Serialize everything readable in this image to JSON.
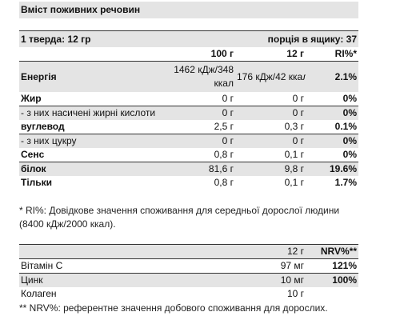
{
  "title": "Вміст поживних речовин",
  "serving": {
    "left": "1 тверда: 12 гр",
    "right": "порція в ящику: 37"
  },
  "table1": {
    "headers": [
      "",
      "100 г",
      "12 г",
      "RI%*"
    ],
    "rows": [
      {
        "name": "Енергія",
        "v100": "1462 кДж/348 ккал",
        "v12": "176 кДж/42 ккал",
        "ri": "2.1%"
      },
      {
        "name": "Жир",
        "v100": "0 г",
        "v12": "0 г",
        "ri": "0%"
      },
      {
        "name": "- з них насичені жирні кислоти",
        "v100": "0 г",
        "v12": "0 г",
        "ri": "0%"
      },
      {
        "name": "вуглевод",
        "v100": "2,5 г",
        "v12": "0,3 г",
        "ri": "0.1%"
      },
      {
        "name": "- з них цукру",
        "v100": "0 г",
        "v12": "0 г",
        "ri": "0%"
      },
      {
        "name": "Сенс",
        "v100": "0,8 г",
        "v12": "0,1 г",
        "ri": "0%"
      },
      {
        "name": "білок",
        "v100": "81,6 г",
        "v12": "9,8 г",
        "ri": "19.6%"
      },
      {
        "name": "Тільки",
        "v100": "0,8 г",
        "v12": "0,1 г",
        "ri": "1.7%"
      }
    ]
  },
  "note1": "* RI%: Довідкове значення споживання для середньої дорослої людини (8400 кДж/2000 ккал).",
  "table2": {
    "headers": [
      "",
      "12 г",
      "NRV%**"
    ],
    "rows": [
      {
        "name": "Вітамін C",
        "v12": "97 мг",
        "nrv": "121%"
      },
      {
        "name": "Цинк",
        "v12": "10 мг",
        "nrv": "100%"
      },
      {
        "name": "Колаген",
        "v12": "10 г",
        "nrv": ""
      }
    ]
  },
  "note2": "** NRV%: референтне значення добового споживання для дорослих."
}
